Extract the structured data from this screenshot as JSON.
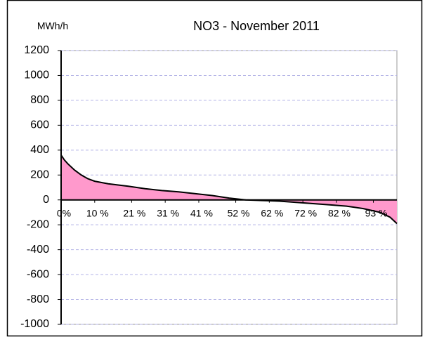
{
  "chart_data": {
    "type": "area",
    "title": "NO3  -  November 2011",
    "y_label": "MWh/h",
    "x": [
      0,
      1,
      2,
      4,
      6,
      8,
      10,
      14,
      20,
      25,
      30,
      35,
      40,
      45,
      50,
      55,
      60,
      65,
      70,
      75,
      80,
      85,
      90,
      95,
      98,
      100
    ],
    "values": [
      360,
      320,
      290,
      240,
      200,
      170,
      150,
      130,
      110,
      90,
      75,
      65,
      50,
      35,
      15,
      0,
      -5,
      -10,
      -20,
      -30,
      -40,
      -50,
      -70,
      -100,
      -140,
      -190
    ],
    "fill_color": "#ff99cc",
    "line_color": "#000000",
    "grid_color": "#b3b3e6",
    "xlim": [
      0,
      100
    ],
    "xticks": [
      {
        "value": 0,
        "label": "0%"
      },
      {
        "value": 10,
        "label": "10 %"
      },
      {
        "value": 21,
        "label": "21 %"
      },
      {
        "value": 31,
        "label": "31 %"
      },
      {
        "value": 41,
        "label": "41 %"
      },
      {
        "value": 52,
        "label": "52 %"
      },
      {
        "value": 62,
        "label": "62 %"
      },
      {
        "value": 72,
        "label": "72 %"
      },
      {
        "value": 82,
        "label": "82 %"
      },
      {
        "value": 93,
        "label": "93 %"
      }
    ],
    "ylim": [
      -1000,
      1200
    ],
    "yticks": [
      -1000,
      -800,
      -600,
      -400,
      -200,
      0,
      200,
      400,
      600,
      800,
      1000,
      1200
    ],
    "grid": true
  }
}
